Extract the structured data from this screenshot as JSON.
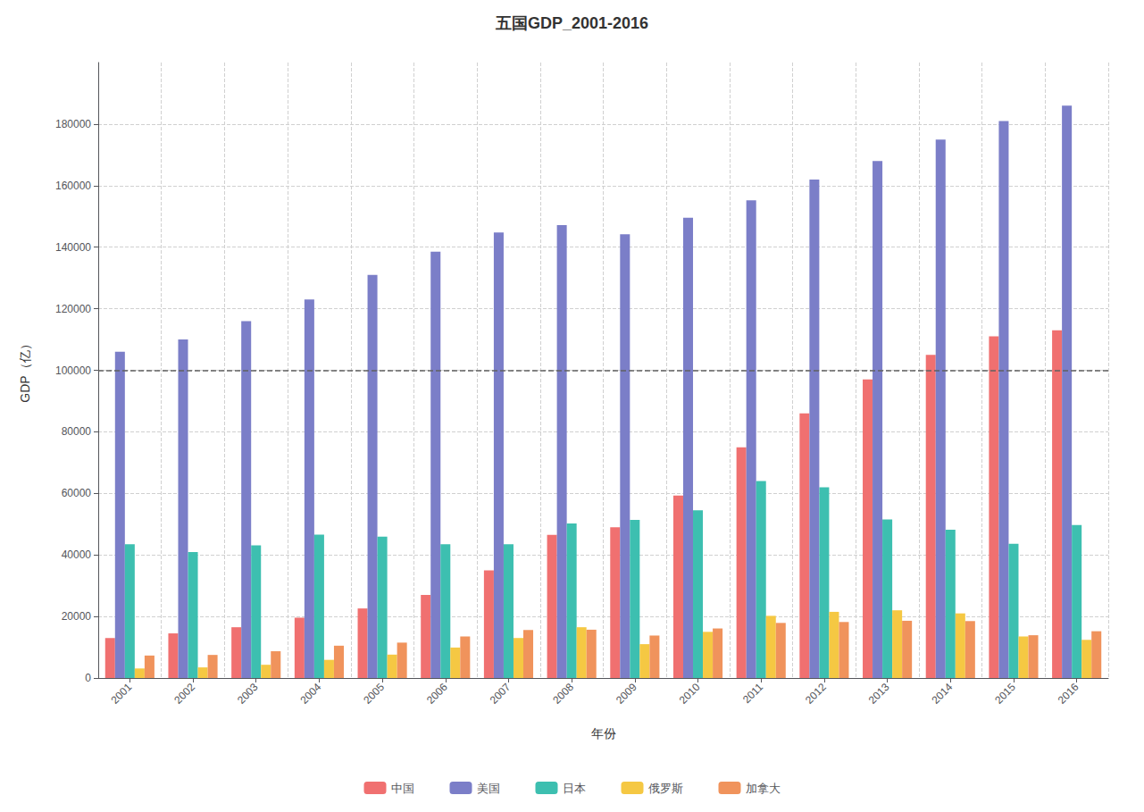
{
  "chart_data": {
    "type": "bar",
    "title": "五国GDP_2001-2016",
    "xlabel": "年份",
    "ylabel": "GDP（亿）",
    "categories": [
      "2001",
      "2002",
      "2003",
      "2004",
      "2005",
      "2006",
      "2007",
      "2008",
      "2009",
      "2010",
      "2011",
      "2012",
      "2013",
      "2014",
      "2015",
      "2016"
    ],
    "series": [
      {
        "name": "中国",
        "color": "#f07070",
        "values": [
          13000,
          14500,
          16500,
          19600,
          22600,
          27000,
          35000,
          46500,
          49000,
          59300,
          75000,
          86000,
          97000,
          105000,
          111000,
          113000
        ]
      },
      {
        "name": "美国",
        "color": "#7b7ec8",
        "values": [
          106000,
          110000,
          116000,
          123000,
          131000,
          138500,
          144800,
          147200,
          144200,
          149600,
          155200,
          162000,
          168000,
          175000,
          181000,
          186000
        ]
      },
      {
        "name": "日本",
        "color": "#3dbfb0",
        "values": [
          43500,
          40900,
          43100,
          46600,
          45900,
          43500,
          43500,
          50200,
          51400,
          54500,
          64000,
          62000,
          51500,
          48200,
          43600,
          49700
        ]
      },
      {
        "name": "俄罗斯",
        "color": "#f5c843",
        "values": [
          3100,
          3450,
          4300,
          5900,
          7600,
          9900,
          13000,
          16500,
          11000,
          15000,
          20200,
          21500,
          22000,
          21000,
          13500,
          12400
        ]
      },
      {
        "name": "加拿大",
        "color": "#f0935c",
        "values": [
          7300,
          7500,
          8700,
          10500,
          11500,
          13500,
          15600,
          15700,
          13800,
          16100,
          17900,
          18200,
          18600,
          18500,
          13900,
          15200
        ]
      }
    ],
    "ylim": [
      0,
      200000
    ],
    "yticks": [
      0,
      20000,
      40000,
      60000,
      80000,
      100000,
      120000,
      140000,
      160000,
      180000
    ],
    "hline_y": 100000,
    "grid": true,
    "legend": "bottom"
  }
}
